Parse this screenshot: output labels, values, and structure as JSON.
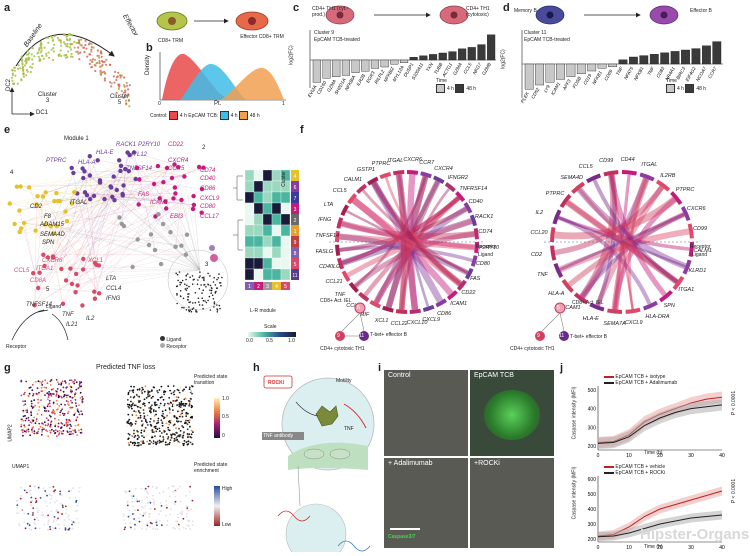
{
  "panels": {
    "a": {
      "letter": "a",
      "dc1": "DC1",
      "dc2": "DC2",
      "baseline": "Baseline",
      "effector": "Effector",
      "cluster3": "Cluster\n3",
      "cluster5": "Cluster\n5"
    },
    "a_cells": {
      "left": "CD8+ TRM",
      "right": "Effector CD8+ TRM"
    },
    "b": {
      "letter": "b",
      "ylabel": "Density",
      "xlabel": "Pt.",
      "x0": "0",
      "x1": "1",
      "legend_title": "Control:",
      "legend": [
        "4 h",
        "EpCAM TCB:",
        "4 h",
        "48 h"
      ]
    },
    "c": {
      "letter": "c",
      "left_cell": "CD4+ TH1 (cyt.-prod.)",
      "right_cell": "CD4+ TH1 (cytotoxic)",
      "cluster": "Cluster 9",
      "treatment": "EpCAM TCB-treated",
      "ylabel": "log2(FC)",
      "legend_title": "Time",
      "legend": [
        "4 h",
        "48 h"
      ],
      "genes": [
        "EVI2A",
        "CD160",
        "GZMA",
        "SH2D1A",
        "NFKBIA",
        "ILR2B",
        "EGR3",
        "RILPL2",
        "NFKBIZ",
        "MYL12A",
        "DUSP1",
        "S100A11",
        "TXN",
        "TUBB",
        "ACTG1",
        "GZMA",
        "CCL5",
        "NKG7",
        "GZMB"
      ]
    },
    "d": {
      "letter": "d",
      "left_cell": "Memory B",
      "right_cell": "Effector B",
      "cluster": "Cluster 11",
      "treatment": "EpCAM TCB-treated",
      "ylabel": "log2(FC)",
      "legend_title": "Time",
      "legend": [
        "4 h",
        "48 h"
      ],
      "genes": [
        "PLEK",
        "CD52",
        "LY9",
        "ICAM1",
        "AFF3",
        "FOSB",
        "CD19",
        "NFKB1",
        "CD69",
        "TNF",
        "NFAT5",
        "NFKB1",
        "TNF",
        "CD83",
        "NR4A1",
        "BIRC3",
        "EIF4G2",
        "NCOA7",
        "CCR7"
      ]
    },
    "e": {
      "letter": "e",
      "module1": "Module 1",
      "modules": [
        "1",
        "2",
        "3",
        "4",
        "5"
      ],
      "cluster_label": "Cluster",
      "cluster_ids": [
        "4",
        "6",
        "7",
        "3",
        "2",
        "1",
        "9",
        "8",
        "5",
        "11"
      ],
      "lr_module": "L-R module",
      "lr_ids": [
        "1",
        "2",
        "3",
        "4",
        "5"
      ],
      "scale_label": "Scale",
      "scale_ticks": [
        "0.0",
        "0.5",
        "1.0"
      ],
      "ligand_label": "Ligand",
      "receptor_label": "Receptor",
      "legend_ligand": "Ligand",
      "legend_receptor": "Receptor",
      "genes": [
        "RACK1",
        "P2RY10",
        "CD22",
        "PTPRC",
        "HLA-E",
        "MYL12",
        "CXCR4",
        "CD74",
        "CD40",
        "CD86",
        "CCR5",
        "CXCL9",
        "CD80",
        "CCL17",
        "EBI3",
        "ICAM1",
        "FAS",
        "HLA-A",
        "TNFSF14",
        "CD2",
        "ITGAL",
        "F8",
        "ADAM15",
        "SEMA4D",
        "SPN",
        "CXCR6",
        "XCL1",
        "CCL5",
        "ITGA1",
        "CD8A",
        "LTA",
        "CCL4",
        "IFNG",
        "TNFSF14",
        "TNF",
        "IL21",
        "IL2"
      ]
    },
    "f": {
      "letter": "f",
      "receptor": "Receptor",
      "ligand": "Ligand",
      "left_genes": [
        "CXCR6",
        "CCR7",
        "CXCR4",
        "IFNGR2",
        "TNFRSF14",
        "CD40",
        "RACK1",
        "CD74",
        "P2RY10",
        "CD80",
        "FAS",
        "CD22",
        "ICAM1",
        "CD86",
        "CXCL9",
        "CXCL10",
        "CCL22",
        "XCL1",
        "MIF",
        "CCL20",
        "TNF",
        "CCL21",
        "CD40LG",
        "FASLG",
        "TNFSF14",
        "IFNG",
        "LTA",
        "CCL5",
        "CALM1",
        "GSTP1",
        "PTPRC",
        "ITGAL"
      ],
      "right_genes": [
        "CD44",
        "ITGAL",
        "IL2RB",
        "PTPRC",
        "CXCR6",
        "CD99",
        "CALM1",
        "KLRD1",
        "ITGA1",
        "SPN",
        "HLA-DRA",
        "CXCL9",
        "SEMA7A",
        "HLA-E",
        "ICAM1",
        "HLA-A",
        "TNF",
        "CD2",
        "CCL20",
        "IL2",
        "PTPRC",
        "SEMA4D",
        "CCL5",
        "CD99"
      ],
      "left_cells": {
        "act_iel": "CD8+ Act. IEL",
        "tbet": "T-bet+ effector B",
        "th1": "CD4+ cytotoxic TH1",
        "n5": "5",
        "n9": "9",
        "n11": "11"
      },
      "right_cells": {
        "act_iel": "CD8+ Act. IEL",
        "tbet": "T-bet+ effector B",
        "th1": "CD4+ cytotoxic TH1",
        "n5": "5",
        "n9": "9",
        "n11": "11"
      }
    },
    "g": {
      "letter": "g",
      "title": "Predicted TNF loss",
      "umap1": "UMAP1",
      "umap2": "UMAP2",
      "transition": "Predicted state transition",
      "t_ticks": [
        "1.0",
        "0.5",
        "0"
      ],
      "enrichment": "Predicted state enrichment",
      "high": "High",
      "low": "Low"
    },
    "h": {
      "letter": "h",
      "rock": "ROCKi",
      "motility": "Motility",
      "tnf_antibody": "TNF antibody",
      "tnf": "TNF"
    },
    "i": {
      "letter": "i",
      "control": "Control",
      "epcam": "EpCAM TCB",
      "adalimumab": "+ Adalimumab",
      "rocki": "+ROCKi",
      "stain": "Caspase3/7"
    },
    "j": {
      "letter": "j",
      "ylabel": "Caspase intensity (MFI)",
      "xlabel": "Time (h)",
      "top_legend": [
        "EpCAM TCB + isotype",
        "EpCAM TCB + Adalimumab"
      ],
      "bottom_legend": [
        "EpCAM TCB + vehicle",
        "EpCAM TCB + ROCKi"
      ],
      "pvalue": "P < 0.0001",
      "xticks": [
        "0",
        "10",
        "20",
        "30",
        "40"
      ],
      "yticks_top": [
        "200",
        "300",
        "400",
        "500"
      ],
      "yticks_bottom": [
        "200",
        "300",
        "400",
        "500",
        "600"
      ]
    },
    "watermark": "Hipster-Organs"
  },
  "chart_data": [
    {
      "type": "bar",
      "title": "c",
      "ylabel": "log2(FC)",
      "categories": [
        "EVI2A",
        "CD160",
        "GZMA",
        "SH2D1A",
        "NFKBIA",
        "ILR2B",
        "EGR3",
        "RILPL2",
        "NFKBIZ",
        "MYL12A",
        "DUSP1",
        "S100A11",
        "TXN",
        "TUBB",
        "ACTG1",
        "GZMA",
        "CCL5",
        "NKG7",
        "GZMB"
      ],
      "values": [
        -1.6,
        -1.3,
        -1.2,
        -1.1,
        -0.9,
        -0.8,
        -0.6,
        -0.5,
        -0.3,
        -0.2,
        0.2,
        0.3,
        0.4,
        0.5,
        0.6,
        0.8,
        0.9,
        1.1,
        1.8
      ],
      "series_time": [
        "4 h",
        "4 h",
        "4 h",
        "4 h",
        "4 h",
        "4 h",
        "4 h",
        "4 h",
        "4 h",
        "4 h",
        "48 h",
        "48 h",
        "48 h",
        "48 h",
        "48 h",
        "48 h",
        "48 h",
        "48 h",
        "48 h"
      ]
    },
    {
      "type": "bar",
      "title": "d",
      "ylabel": "log2(FC)",
      "categories": [
        "PLEK",
        "CD52",
        "LY9",
        "ICAM1",
        "AFF3",
        "FOSB",
        "CD19",
        "NFKB1",
        "CD69",
        "TNF",
        "NFAT5",
        "NFKB1",
        "TNF",
        "CD83",
        "NR4A1",
        "BIRC3",
        "EIF4G2",
        "NCOA7",
        "CCR7"
      ],
      "values": [
        -1.8,
        -1.5,
        -1.3,
        -1.1,
        -0.9,
        -0.7,
        -0.5,
        -0.3,
        -0.2,
        0.3,
        0.5,
        0.6,
        0.7,
        0.8,
        0.9,
        1.0,
        1.1,
        1.3,
        1.6
      ],
      "series_time": [
        "4 h",
        "4 h",
        "4 h",
        "4 h",
        "4 h",
        "4 h",
        "4 h",
        "4 h",
        "4 h",
        "48 h",
        "48 h",
        "48 h",
        "48 h",
        "48 h",
        "48 h",
        "48 h",
        "48 h",
        "48 h",
        "48 h"
      ]
    },
    {
      "type": "line",
      "title": "j-top",
      "xlabel": "Time (h)",
      "ylabel": "Caspase intensity (MFI)",
      "x": [
        0,
        5,
        10,
        15,
        20,
        25,
        30,
        35,
        40
      ],
      "ylim": [
        180,
        520
      ],
      "series": [
        {
          "name": "EpCAM TCB + isotype",
          "values": [
            220,
            225,
            260,
            330,
            370,
            400,
            430,
            450,
            460
          ]
        },
        {
          "name": "EpCAM TCB + Adalimumab",
          "values": [
            215,
            220,
            250,
            310,
            350,
            380,
            400,
            410,
            420
          ]
        }
      ]
    },
    {
      "type": "line",
      "title": "j-bottom",
      "xlabel": "Time (h)",
      "ylabel": "Caspase intensity (MFI)",
      "x": [
        0,
        5,
        10,
        15,
        20,
        25,
        30,
        35,
        40
      ],
      "ylim": [
        180,
        620
      ],
      "series": [
        {
          "name": "EpCAM TCB + vehicle",
          "values": [
            220,
            230,
            280,
            350,
            400,
            430,
            460,
            490,
            520
          ]
        },
        {
          "name": "EpCAM TCB + ROCKi",
          "values": [
            215,
            220,
            240,
            270,
            300,
            320,
            340,
            350,
            360
          ]
        }
      ]
    }
  ],
  "colors": {
    "purple": "#6a3d9a",
    "magenta": "#c51b7d",
    "yellow": "#e6c229",
    "red": "#d93a3a",
    "cyan": "#3fbde8",
    "orange": "#f0a050",
    "green": "#9bbf3a",
    "grey": "#bdbdbd",
    "dark": "#3a3a3a"
  }
}
